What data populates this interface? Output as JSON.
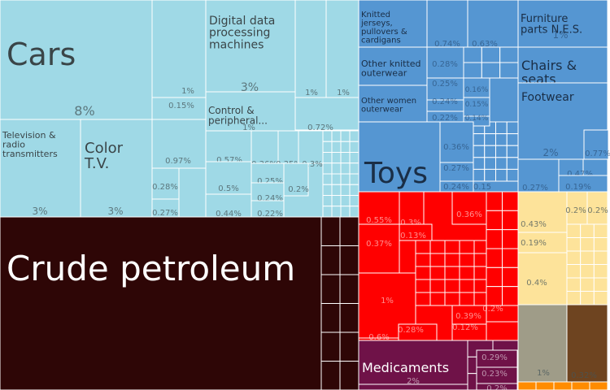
{
  "chart_data": {
    "type": "treemap",
    "title": "",
    "colors": {
      "machines": "#9fd9e6",
      "mineral": "#2e0606",
      "textiles": "#5596d2",
      "misc": "#ff0000",
      "chemicals": "#6f1248",
      "food": "#fde39a",
      "stone": "#9f9c88",
      "wood": "#6e4420",
      "metals": "#ff8c00"
    },
    "items": [
      {
        "name": "Cars",
        "value": "8%",
        "sector": "machines"
      },
      {
        "name": "Digital data processing machines",
        "value": "3%",
        "sector": "machines"
      },
      {
        "name": "Control & peripheral...",
        "value": "1%",
        "sector": "machines"
      },
      {
        "name": "Television & radio transmitters",
        "value": "3%",
        "sector": "machines"
      },
      {
        "name": "Color T.V.",
        "value": "3%",
        "sector": "machines"
      },
      {
        "name": "",
        "value": "1%",
        "sector": "machines"
      },
      {
        "name": "",
        "value": "0.15%",
        "sector": "machines"
      },
      {
        "name": "",
        "value": "1%",
        "sector": "machines"
      },
      {
        "name": "",
        "value": "1%",
        "sector": "machines"
      },
      {
        "name": "",
        "value": "0.72%",
        "sector": "machines"
      },
      {
        "name": "",
        "value": "0.97%",
        "sector": "machines"
      },
      {
        "name": "",
        "value": "0.28%",
        "sector": "machines"
      },
      {
        "name": "",
        "value": "0.27%",
        "sector": "machines"
      },
      {
        "name": "",
        "value": "0.57%",
        "sector": "machines"
      },
      {
        "name": "",
        "value": "0.5%",
        "sector": "machines"
      },
      {
        "name": "",
        "value": "0.44%",
        "sector": "machines"
      },
      {
        "name": "",
        "value": "0.36%",
        "sector": "machines"
      },
      {
        "name": "",
        "value": "0.35%",
        "sector": "machines"
      },
      {
        "name": "",
        "value": "0.3%",
        "sector": "machines"
      },
      {
        "name": "",
        "value": "0.25%",
        "sector": "machines"
      },
      {
        "name": "",
        "value": "0.24%",
        "sector": "machines"
      },
      {
        "name": "",
        "value": "0.2%",
        "sector": "machines"
      },
      {
        "name": "",
        "value": "0.22%",
        "sector": "machines"
      },
      {
        "name": "Crude petroleum",
        "value": "",
        "sector": "mineral"
      },
      {
        "name": "Knitted jerseys, pullovers & cardigans",
        "value": "",
        "sector": "textiles"
      },
      {
        "name": "Other knitted outerwear",
        "value": "",
        "sector": "textiles"
      },
      {
        "name": "Other women outerwear",
        "value": "",
        "sector": "textiles"
      },
      {
        "name": "",
        "value": "0.74%",
        "sector": "textiles"
      },
      {
        "name": "",
        "value": "0.63%",
        "sector": "textiles"
      },
      {
        "name": "",
        "value": "0.28%",
        "sector": "textiles"
      },
      {
        "name": "",
        "value": "0.25%",
        "sector": "textiles"
      },
      {
        "name": "",
        "value": "0.16%",
        "sector": "textiles"
      },
      {
        "name": "",
        "value": "0.24%",
        "sector": "textiles"
      },
      {
        "name": "",
        "value": "0.15%",
        "sector": "textiles"
      },
      {
        "name": "",
        "value": "0.22%",
        "sector": "textiles"
      },
      {
        "name": "",
        "value": "0.14%",
        "sector": "textiles"
      },
      {
        "name": "",
        "value": "0.36%",
        "sector": "textiles"
      },
      {
        "name": "",
        "value": "0.27%",
        "sector": "textiles"
      },
      {
        "name": "",
        "value": "0.24%",
        "sector": "textiles"
      },
      {
        "name": "",
        "value": "0.15",
        "sector": "textiles"
      },
      {
        "name": "Toys",
        "value": "",
        "sector": "textiles"
      },
      {
        "name": "Furniture parts N.E.S.",
        "value": "1%",
        "sector": "textiles"
      },
      {
        "name": "Chairs & seats",
        "value": "",
        "sector": "textiles"
      },
      {
        "name": "Footwear",
        "value": "2%",
        "sector": "textiles"
      },
      {
        "name": "",
        "value": "0.77%",
        "sector": "textiles"
      },
      {
        "name": "",
        "value": "0.27%",
        "sector": "textiles"
      },
      {
        "name": "",
        "value": "0.47%",
        "sector": "textiles"
      },
      {
        "name": "",
        "value": "0.19%",
        "sector": "textiles"
      },
      {
        "name": "",
        "value": "0.55%",
        "sector": "misc"
      },
      {
        "name": "",
        "value": "0.3%",
        "sector": "misc"
      },
      {
        "name": "",
        "value": "0.36%",
        "sector": "misc"
      },
      {
        "name": "",
        "value": "0.13%",
        "sector": "misc"
      },
      {
        "name": "",
        "value": "0.37%",
        "sector": "misc"
      },
      {
        "name": "",
        "value": "1%",
        "sector": "misc"
      },
      {
        "name": "",
        "value": "0.39%",
        "sector": "misc"
      },
      {
        "name": "",
        "value": "0.12%",
        "sector": "misc"
      },
      {
        "name": "",
        "value": "0.2%",
        "sector": "misc"
      },
      {
        "name": "",
        "value": "0.28%",
        "sector": "misc"
      },
      {
        "name": "",
        "value": "0.6%",
        "sector": "misc"
      },
      {
        "name": "Medicaments",
        "value": "2%",
        "sector": "chemicals"
      },
      {
        "name": "",
        "value": "0.29%",
        "sector": "chemicals"
      },
      {
        "name": "",
        "value": "0.23%",
        "sector": "chemicals"
      },
      {
        "name": "",
        "value": "0.2%",
        "sector": "chemicals"
      },
      {
        "name": "",
        "value": "0.43%",
        "sector": "food"
      },
      {
        "name": "",
        "value": "0.19%",
        "sector": "food"
      },
      {
        "name": "",
        "value": "0.4%",
        "sector": "food"
      },
      {
        "name": "",
        "value": "0.2%",
        "sector": "food"
      },
      {
        "name": "",
        "value": "0.2%",
        "sector": "food"
      },
      {
        "name": "",
        "value": "1%",
        "sector": "stone"
      },
      {
        "name": "",
        "value": "0.32%",
        "sector": "wood"
      }
    ]
  }
}
